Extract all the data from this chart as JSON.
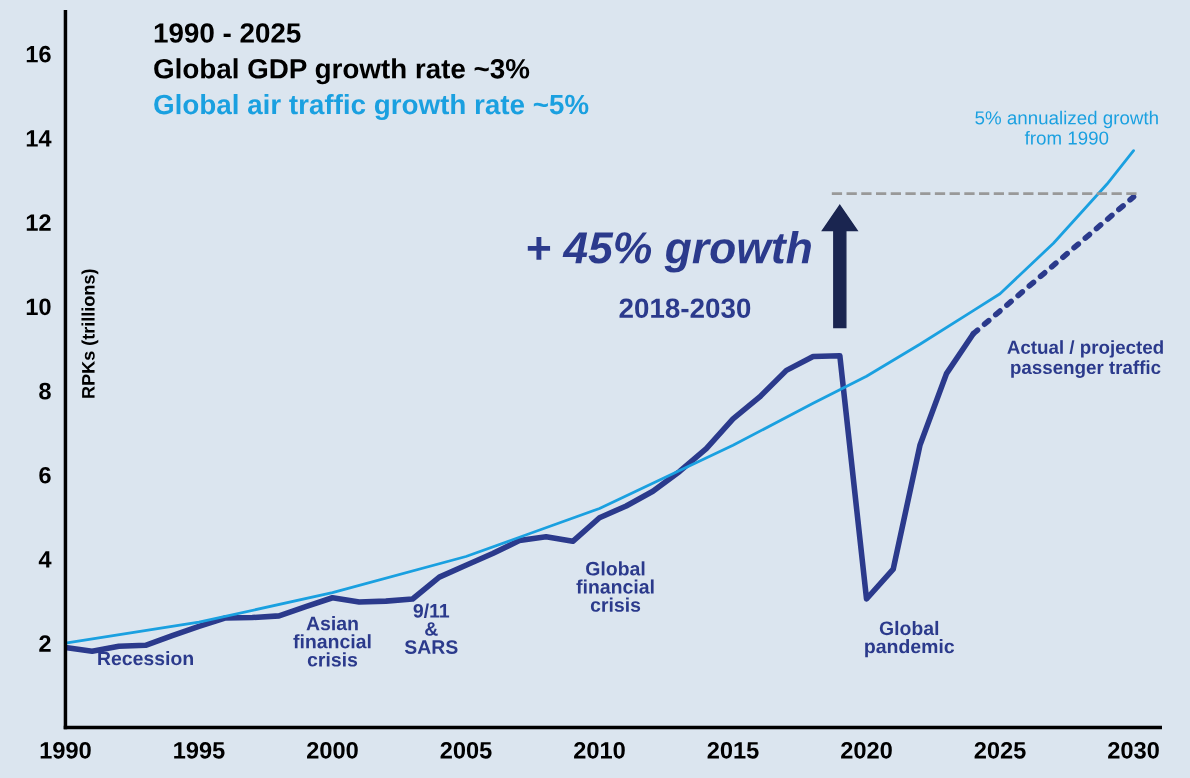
{
  "chart_data": {
    "type": "line",
    "title": "1990 - 2025",
    "subtitle": "Global GDP growth rate ~3%",
    "ylabel": "RPKs (trillions)",
    "annotations": [
      "Global air traffic growth rate ~5%",
      "Recession",
      "Asian\nfinancial\ncrisis",
      "9/11\n&\nSARS",
      "Global\nfinancial\ncrisis",
      "Global\npandemic",
      "+ 45% growth",
      "2018-2030"
    ],
    "series": [
      {
        "name": "Actual / projected\npassenger traffic",
        "color": "#2b3a8c",
        "line_style": "solid",
        "x": [
          1990,
          1991,
          1992,
          1993,
          1994,
          1995,
          1996,
          1997,
          1998,
          1999,
          2000,
          2001,
          2002,
          2003,
          2004,
          2005,
          2006,
          2007,
          2008,
          2009,
          2010,
          2011,
          2012,
          2013,
          2014,
          2015,
          2016,
          2017,
          2018,
          2019,
          2020,
          2021,
          2022,
          2023,
          2024
        ],
        "values": [
          1.9,
          1.81,
          1.93,
          1.95,
          2.18,
          2.4,
          2.6,
          2.61,
          2.65,
          2.87,
          3.08,
          2.98,
          3.0,
          3.05,
          3.57,
          3.85,
          4.13,
          4.44,
          4.53,
          4.42,
          4.98,
          5.26,
          5.61,
          6.08,
          6.62,
          7.33,
          7.85,
          8.48,
          8.81,
          8.83,
          3.05,
          3.76,
          6.7,
          8.41,
          9.35
        ]
      },
      {
        "color": "#2b3a8c",
        "line_style": "dotted",
        "x": [
          2024,
          2030
        ],
        "values": [
          9.35,
          12.6
        ]
      },
      {
        "name": "5% annualized growth\nfrom 1990",
        "color": "#1aa0e0",
        "line_style": "solid",
        "x": [
          1990,
          1995,
          2000,
          2005,
          2010,
          2015,
          2018,
          2020,
          2022,
          2024,
          2025,
          2026,
          2027,
          2028,
          2029,
          2030
        ],
        "values": [
          2.0,
          2.5,
          3.2,
          4.06,
          5.2,
          6.7,
          7.7,
          8.34,
          9.1,
          9.9,
          10.3,
          10.9,
          11.5,
          12.2,
          12.9,
          13.7
        ]
      }
    ],
    "ref_lines": [
      {
        "axis": "y",
        "value": 12.68,
        "color": "#999999",
        "line_style": "dashed"
      }
    ],
    "xlim": [
      1990,
      2031
    ],
    "xticks": [
      1990,
      1995,
      2000,
      2005,
      2010,
      2015,
      2020,
      2025,
      2030
    ],
    "ylim": [
      0,
      17
    ],
    "yticks": [
      2,
      4,
      6,
      8,
      10,
      12,
      14,
      16
    ],
    "grid": false,
    "marker": "none"
  }
}
